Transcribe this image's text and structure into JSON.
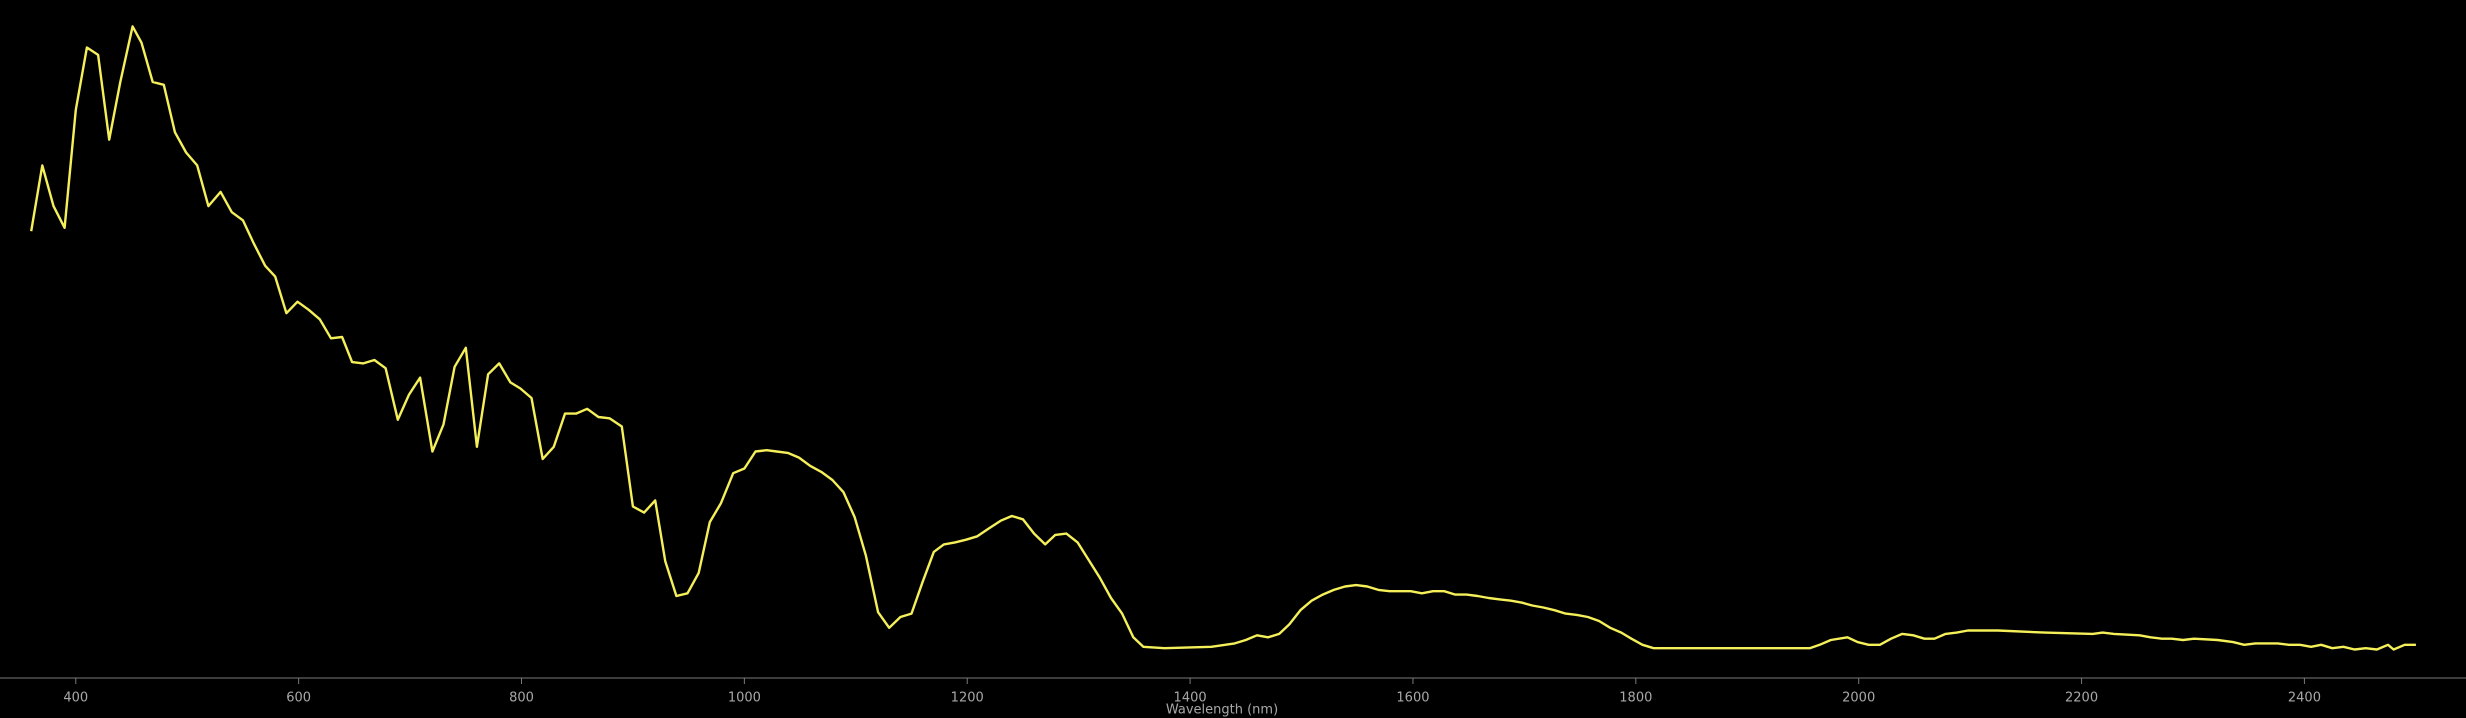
{
  "chart_data": {
    "type": "line",
    "x_label": "Wavelength (nm)",
    "color": "#f5f05a",
    "x": [
      360,
      370,
      380,
      390,
      400,
      410,
      420,
      430,
      440,
      451,
      459,
      469,
      479,
      489,
      499,
      509,
      519,
      530,
      540,
      550,
      560,
      570,
      579,
      589,
      599,
      609,
      619,
      629,
      639,
      648,
      658,
      668,
      678,
      689,
      699,
      709,
      720,
      730,
      740,
      750,
      760,
      770,
      780,
      790,
      799,
      809,
      819,
      829,
      839,
      849,
      859,
      869,
      879,
      890,
      900,
      910,
      920,
      929,
      939,
      949,
      959,
      969,
      979,
      990,
      1000,
      1010,
      1020,
      1029,
      1039,
      1049,
      1059,
      1069,
      1079,
      1089,
      1099,
      1109,
      1120,
      1130,
      1140,
      1150,
      1160,
      1170,
      1179,
      1189,
      1199,
      1209,
      1219,
      1230,
      1240,
      1250,
      1260,
      1270,
      1279,
      1289,
      1299,
      1309,
      1319,
      1329,
      1339,
      1349,
      1358,
      1377,
      1419,
      1440,
      1450,
      1460,
      1470,
      1480,
      1489,
      1499,
      1509,
      1519,
      1529,
      1539,
      1549,
      1559,
      1569,
      1579,
      1589,
      1598,
      1608,
      1618,
      1628,
      1638,
      1648,
      1658,
      1668,
      1678,
      1688,
      1698,
      1707,
      1717,
      1727,
      1737,
      1747,
      1757,
      1767,
      1777,
      1787,
      1796,
      1806,
      1816,
      1885,
      1956,
      1965,
      1975,
      1990,
      1999,
      2009,
      2019,
      2029,
      2039,
      2049,
      2059,
      2068,
      2078,
      2088,
      2098,
      2125,
      2167,
      2210,
      2219,
      2229,
      2252,
      2262,
      2272,
      2281,
      2291,
      2301,
      2322,
      2336,
      2346,
      2356,
      2366,
      2376,
      2386,
      2396,
      2406,
      2415,
      2425,
      2435,
      2445,
      2455,
      2465,
      2475,
      2480,
      2490,
      2500
    ],
    "values": [
      65.9,
      75.6,
      69.6,
      66.4,
      83.8,
      93.0,
      91.9,
      79.4,
      87.9,
      96.1,
      93.7,
      87.9,
      87.5,
      80.5,
      77.5,
      75.6,
      69.6,
      71.7,
      68.7,
      67.5,
      64.0,
      60.8,
      59.2,
      53.8,
      55.5,
      54.3,
      52.9,
      50.1,
      50.3,
      46.6,
      46.4,
      46.9,
      45.7,
      38.1,
      41.8,
      44.3,
      33.4,
      37.4,
      45.9,
      48.7,
      34.1,
      44.8,
      46.4,
      43.6,
      42.7,
      41.3,
      32.3,
      34.1,
      39.0,
      39.0,
      39.7,
      38.5,
      38.3,
      37.1,
      25.3,
      24.4,
      26.2,
      17.2,
      12.1,
      12.5,
      15.5,
      23.0,
      25.8,
      30.2,
      30.9,
      33.4,
      33.6,
      33.4,
      33.2,
      32.5,
      31.3,
      30.4,
      29.2,
      27.4,
      23.7,
      18.1,
      9.7,
      7.4,
      9.0,
      9.5,
      14.2,
      18.6,
      19.7,
      20.0,
      20.4,
      20.9,
      22.0,
      23.2,
      23.9,
      23.4,
      21.3,
      19.7,
      21.1,
      21.3,
      20.0,
      17.4,
      14.8,
      11.8,
      9.5,
      6.0,
      4.6,
      4.4,
      4.6,
      5.1,
      5.6,
      6.3,
      6.0,
      6.5,
      7.9,
      10.0,
      11.4,
      12.3,
      13.0,
      13.5,
      13.7,
      13.5,
      13.0,
      12.8,
      12.8,
      12.8,
      12.5,
      12.8,
      12.8,
      12.3,
      12.3,
      12.1,
      11.8,
      11.6,
      11.4,
      11.1,
      10.7,
      10.4,
      10.0,
      9.5,
      9.3,
      9.0,
      8.4,
      7.4,
      6.7,
      5.8,
      4.9,
      4.4,
      4.4,
      4.4,
      4.9,
      5.6,
      6.0,
      5.3,
      4.9,
      4.9,
      5.8,
      6.5,
      6.3,
      5.8,
      5.8,
      6.5,
      6.7,
      7.0,
      7.0,
      6.7,
      6.5,
      6.7,
      6.5,
      6.3,
      6.0,
      5.8,
      5.8,
      5.6,
      5.8,
      5.6,
      5.3,
      4.9,
      5.1,
      5.1,
      5.1,
      4.9,
      4.9,
      4.6,
      4.9,
      4.4,
      4.6,
      4.2,
      4.4,
      4.2,
      4.9,
      4.2,
      4.9,
      4.9
    ],
    "xlim": [
      332,
      2545
    ],
    "xticks": [
      400,
      600,
      800,
      1000,
      1200,
      1400,
      1600,
      1800,
      2000,
      2200,
      2400
    ],
    "ylim": [
      0,
      100
    ]
  }
}
